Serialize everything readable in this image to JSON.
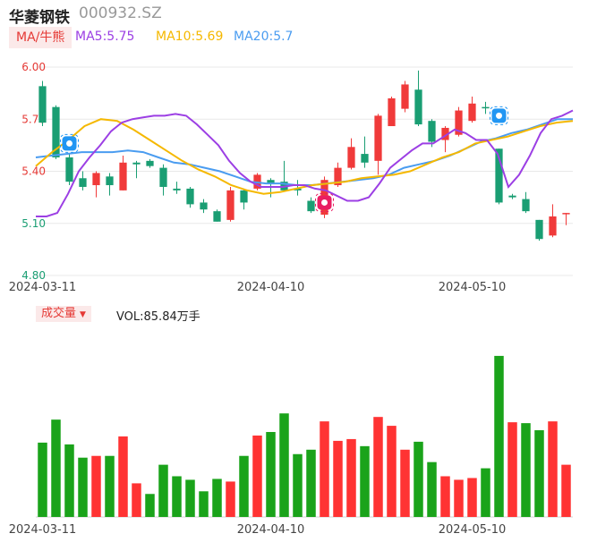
{
  "header": {
    "name": "华菱钢铁",
    "code": "000932.SZ"
  },
  "ma_bar": {
    "tab_label": "MA/牛熊",
    "items": [
      {
        "label": "MA5:5.75",
        "color": "#9c3fe4"
      },
      {
        "label": "MA10:5.69",
        "color": "#f5b800"
      },
      {
        "label": "MA20:5.7",
        "color": "#4a9cf0"
      }
    ]
  },
  "volume_bar": {
    "tab_label": "成交量",
    "vol_label": "VOL:85.84万手"
  },
  "colors": {
    "up": "#f03a3a",
    "down": "#1a9e73",
    "vol_up": "#ff3333",
    "vol_down": "#1aa31a",
    "grid": "#e8e8e8"
  },
  "icons": {
    "tab_dropdown": "triangle-down-icon",
    "bull_marker": "bull-marker-icon",
    "bear_marker": "bear-marker-icon"
  },
  "chart_data": {
    "type": "candlestick",
    "price_axis": {
      "ticks": [
        "6.00",
        "5.70",
        "5.40",
        "5.10",
        "4.80"
      ],
      "values": [
        6.0,
        5.7,
        5.4,
        5.1,
        4.8
      ]
    },
    "x_tick_labels": [
      {
        "label": "2024-03-11",
        "index": 0
      },
      {
        "label": "2024-04-10",
        "index": 17
      },
      {
        "label": "2024-05-10",
        "index": 32
      }
    ],
    "candles": [
      {
        "o": 5.89,
        "c": 5.68,
        "h": 5.92,
        "l": 5.66
      },
      {
        "o": 5.77,
        "c": 5.48,
        "h": 5.78,
        "l": 5.47
      },
      {
        "o": 5.48,
        "c": 5.34,
        "h": 5.5,
        "l": 5.32
      },
      {
        "o": 5.36,
        "c": 5.31,
        "h": 5.4,
        "l": 5.29
      },
      {
        "o": 5.32,
        "c": 5.39,
        "h": 5.4,
        "l": 5.25
      },
      {
        "o": 5.37,
        "c": 5.32,
        "h": 5.39,
        "l": 5.26
      },
      {
        "o": 5.29,
        "c": 5.45,
        "h": 5.49,
        "l": 5.29
      },
      {
        "o": 5.45,
        "c": 5.44,
        "h": 5.46,
        "l": 5.36
      },
      {
        "o": 5.46,
        "c": 5.43,
        "h": 5.47,
        "l": 5.42
      },
      {
        "o": 5.42,
        "c": 5.31,
        "h": 5.44,
        "l": 5.26
      },
      {
        "o": 5.3,
        "c": 5.29,
        "h": 5.34,
        "l": 5.27
      },
      {
        "o": 5.3,
        "c": 5.21,
        "h": 5.31,
        "l": 5.19
      },
      {
        "o": 5.22,
        "c": 5.18,
        "h": 5.24,
        "l": 5.16
      },
      {
        "o": 5.17,
        "c": 5.11,
        "h": 5.18,
        "l": 5.11
      },
      {
        "o": 5.12,
        "c": 5.29,
        "h": 5.31,
        "l": 5.11
      },
      {
        "o": 5.29,
        "c": 5.22,
        "h": 5.3,
        "l": 5.18
      },
      {
        "o": 5.3,
        "c": 5.38,
        "h": 5.39,
        "l": 5.29
      },
      {
        "o": 5.35,
        "c": 5.33,
        "h": 5.36,
        "l": 5.25
      },
      {
        "o": 5.34,
        "c": 5.29,
        "h": 5.46,
        "l": 5.29
      },
      {
        "o": 5.3,
        "c": 5.29,
        "h": 5.35,
        "l": 5.26
      },
      {
        "o": 5.23,
        "c": 5.17,
        "h": 5.25,
        "l": 5.16
      },
      {
        "o": 5.15,
        "c": 5.35,
        "h": 5.37,
        "l": 5.13
      },
      {
        "o": 5.32,
        "c": 5.42,
        "h": 5.45,
        "l": 5.31
      },
      {
        "o": 5.42,
        "c": 5.54,
        "h": 5.59,
        "l": 5.41
      },
      {
        "o": 5.5,
        "c": 5.45,
        "h": 5.6,
        "l": 5.42
      },
      {
        "o": 5.46,
        "c": 5.72,
        "h": 5.73,
        "l": 5.38
      },
      {
        "o": 5.66,
        "c": 5.82,
        "h": 5.83,
        "l": 5.66
      },
      {
        "o": 5.76,
        "c": 5.9,
        "h": 5.92,
        "l": 5.74
      },
      {
        "o": 5.87,
        "c": 5.67,
        "h": 5.98,
        "l": 5.66
      },
      {
        "o": 5.69,
        "c": 5.57,
        "h": 5.7,
        "l": 5.54
      },
      {
        "o": 5.58,
        "c": 5.65,
        "h": 5.66,
        "l": 5.51
      },
      {
        "o": 5.61,
        "c": 5.75,
        "h": 5.77,
        "l": 5.6
      },
      {
        "o": 5.69,
        "c": 5.79,
        "h": 5.83,
        "l": 5.68
      },
      {
        "o": 5.77,
        "c": 5.77,
        "h": 5.8,
        "l": 5.73
      },
      {
        "o": 5.53,
        "c": 5.22,
        "h": 5.53,
        "l": 5.21
      },
      {
        "o": 5.26,
        "c": 5.25,
        "h": 5.27,
        "l": 5.24
      },
      {
        "o": 5.24,
        "c": 5.17,
        "h": 5.28,
        "l": 5.16
      },
      {
        "o": 5.12,
        "c": 5.01,
        "h": 5.12,
        "l": 5.0
      },
      {
        "o": 5.03,
        "c": 5.14,
        "h": 5.21,
        "l": 5.02
      },
      {
        "o": 5.16,
        "c": 5.16,
        "h": 5.16,
        "l": 5.09
      }
    ],
    "ma5": [
      5.14,
      5.14,
      5.16,
      5.27,
      5.4,
      5.48,
      5.55,
      5.63,
      5.68,
      5.7,
      5.71,
      5.72,
      5.72,
      5.73,
      5.72,
      5.67,
      5.61,
      5.55,
      5.46,
      5.39,
      5.34,
      5.31,
      5.31,
      5.31,
      5.32,
      5.32,
      5.3,
      5.29,
      5.26,
      5.23,
      5.23,
      5.25,
      5.33,
      5.42,
      5.47,
      5.52,
      5.56,
      5.56,
      5.6,
      5.64,
      5.62,
      5.58,
      5.58,
      5.5,
      5.31,
      5.38,
      5.49,
      5.62,
      5.7,
      5.72,
      5.75
    ],
    "ma10": [
      5.43,
      5.51,
      5.58,
      5.66,
      5.7,
      5.69,
      5.64,
      5.58,
      5.52,
      5.46,
      5.41,
      5.37,
      5.32,
      5.29,
      5.27,
      5.28,
      5.3,
      5.32,
      5.33,
      5.34,
      5.36,
      5.37,
      5.38,
      5.4,
      5.44,
      5.48,
      5.51,
      5.56,
      5.58,
      5.6,
      5.63,
      5.66,
      5.68,
      5.69
    ],
    "ma20": [
      5.48,
      5.49,
      5.5,
      5.51,
      5.51,
      5.51,
      5.52,
      5.51,
      5.48,
      5.45,
      5.44,
      5.42,
      5.4,
      5.37,
      5.34,
      5.33,
      5.33,
      5.32,
      5.32,
      5.33,
      5.34,
      5.35,
      5.36,
      5.38,
      5.42,
      5.44,
      5.46,
      5.49,
      5.53,
      5.57,
      5.59,
      5.62,
      5.64,
      5.67,
      5.7,
      5.7
    ],
    "bull_marker_index": 2,
    "bear_marker_index": 21,
    "bull_marker_index_2": 34,
    "volume": {
      "ylim": [
        0,
        190
      ],
      "values": [
        84,
        110,
        82,
        67,
        69,
        69,
        91,
        38,
        26,
        59,
        46,
        42,
        29,
        43,
        40,
        69,
        92,
        96,
        117,
        71,
        76,
        108,
        86,
        88,
        80,
        113,
        103,
        76,
        85,
        62,
        46,
        42,
        44,
        55,
        182,
        107,
        106,
        98,
        108,
        59
      ],
      "up": [
        false,
        false,
        false,
        false,
        true,
        false,
        true,
        true,
        false,
        false,
        false,
        false,
        false,
        false,
        true,
        false,
        true,
        false,
        false,
        false,
        false,
        true,
        true,
        true,
        false,
        true,
        true,
        true,
        false,
        false,
        true,
        true,
        true,
        false,
        false,
        true,
        false,
        false,
        true,
        true
      ]
    }
  }
}
